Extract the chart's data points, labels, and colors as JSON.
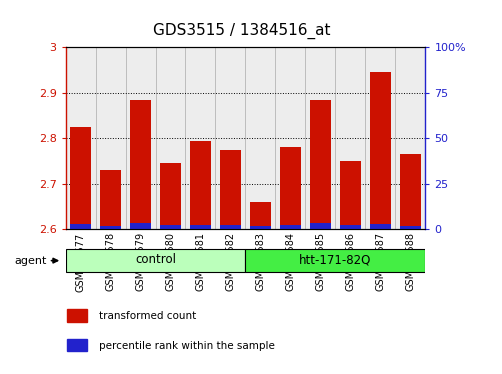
{
  "title": "GDS3515 / 1384516_at",
  "samples": [
    "GSM313577",
    "GSM313578",
    "GSM313579",
    "GSM313580",
    "GSM313581",
    "GSM313582",
    "GSM313583",
    "GSM313584",
    "GSM313585",
    "GSM313586",
    "GSM313587",
    "GSM313588"
  ],
  "transformed_count": [
    2.825,
    2.73,
    2.885,
    2.745,
    2.795,
    2.775,
    2.66,
    2.78,
    2.885,
    2.75,
    2.945,
    2.765
  ],
  "percentile_rank_scaled": [
    0.012,
    0.008,
    0.015,
    0.01,
    0.01,
    0.01,
    0.008,
    0.01,
    0.015,
    0.01,
    0.012,
    0.008
  ],
  "ylim_left": [
    2.6,
    3.0
  ],
  "ylim_right": [
    0,
    100
  ],
  "bar_color_red": "#CC1100",
  "bar_color_blue": "#2222CC",
  "grid_color": "#000000",
  "background_color": "#FFFFFF",
  "cell_bg_color": "#D8D8D8",
  "tick_label_color_left": "#CC1100",
  "tick_label_color_right": "#2222CC",
  "yticks_left": [
    2.6,
    2.7,
    2.8,
    2.9,
    3.0
  ],
  "yticks_right": [
    0,
    25,
    50,
    75,
    100
  ],
  "ytick_labels_right": [
    "0",
    "25",
    "50",
    "75",
    "100%"
  ],
  "ytick_labels_left": [
    "2.6",
    "2.7",
    "2.8",
    "2.9",
    "3"
  ],
  "groups": [
    {
      "label": "control",
      "start": 0,
      "end": 5,
      "color": "#BBFFBB"
    },
    {
      "label": "htt-171-82Q",
      "start": 6,
      "end": 11,
      "color": "#44EE44"
    }
  ],
  "agent_label": "agent",
  "legend_items": [
    {
      "label": "transformed count",
      "color": "#CC1100"
    },
    {
      "label": "percentile rank within the sample",
      "color": "#2222CC"
    }
  ],
  "base_value": 2.6,
  "bar_width": 0.7,
  "title_fontsize": 11,
  "tick_fontsize": 8,
  "sample_fontsize": 7
}
